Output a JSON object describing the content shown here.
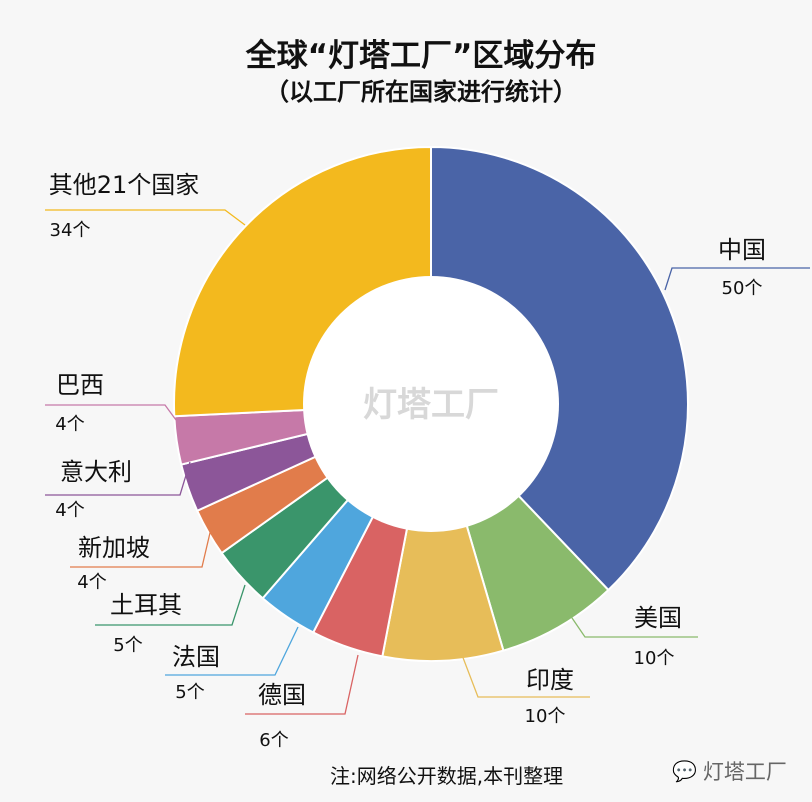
{
  "chart_data": {
    "type": "pie",
    "donut": true,
    "title": "全球“灯塔工厂”区域分布",
    "subtitle": "（以工厂所在国家进行统计）",
    "center_label": "灯塔工厂",
    "categories": [
      "中国",
      "美国",
      "印度",
      "德国",
      "法国",
      "土耳其",
      "新加坡",
      "意大利",
      "巴西",
      "其他21个国家"
    ],
    "values": [
      50,
      10,
      10,
      6,
      5,
      5,
      4,
      4,
      4,
      34
    ],
    "value_labels": [
      "50个",
      "10个",
      "10个",
      "6个",
      "5个",
      "5个",
      "4个",
      "4个",
      "4个",
      "34个"
    ],
    "colors": [
      "#4a64a7",
      "#8aba6c",
      "#e7bd59",
      "#d96363",
      "#4fa6dd",
      "#3a956b",
      "#e17c4b",
      "#8c5699",
      "#c679a8",
      "#f3b91e"
    ]
  },
  "footer": {
    "note": "注:网络公开数据,本刊整理",
    "watermark": "灯塔工厂"
  }
}
